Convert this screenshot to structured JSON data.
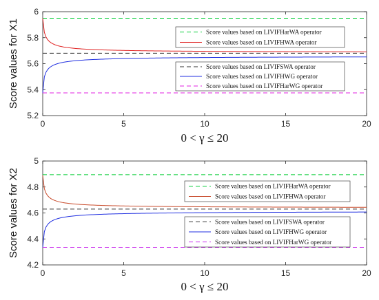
{
  "chart_data": [
    {
      "type": "line",
      "ylabel": "Score values for X1",
      "xlabel": "0 < γ ≤ 20",
      "xlim": [
        0,
        20
      ],
      "ylim": [
        5.2,
        6.0
      ],
      "xticks": [
        "0",
        "5",
        "10",
        "15",
        "20"
      ],
      "yticks": [
        "5.2",
        "5.4",
        "5.6",
        "5.8",
        "6"
      ],
      "grid": false,
      "series": [
        {
          "name": "Score values based on LIVIFHarWA operator",
          "color": "#00cc33",
          "style": "dashed",
          "kind": "constant",
          "value": 5.95
        },
        {
          "name": "Score values based on LIVIFHWA operator",
          "color": "#e02020",
          "style": "solid",
          "kind": "decay",
          "start": 5.95,
          "limit": 5.685,
          "x": [
            0,
            0.5,
            1,
            2,
            5,
            10,
            15,
            20
          ],
          "values": [
            5.95,
            5.79,
            5.75,
            5.72,
            5.7,
            5.695,
            5.69,
            5.688
          ]
        },
        {
          "name": "Score values based on LIVIFSWA operator",
          "color": "#333333",
          "style": "dashed",
          "kind": "constant",
          "value": 5.68
        },
        {
          "name": "Score values based on  LIVIFHWG operator",
          "color": "#1f2ee0",
          "style": "solid",
          "kind": "rise",
          "start": 5.375,
          "limit": 5.66,
          "x": [
            0,
            0.5,
            1,
            2,
            5,
            10,
            15,
            20
          ],
          "values": [
            5.375,
            5.46,
            5.5,
            5.54,
            5.59,
            5.625,
            5.64,
            5.65
          ]
        },
        {
          "name": "Score values  based on  LIVIFHarWG operator",
          "color": "#e020e0",
          "style": "dashed",
          "kind": "constant",
          "value": 5.375
        }
      ],
      "legend_groups": [
        [
          0,
          1
        ],
        [
          2,
          3,
          4
        ]
      ]
    },
    {
      "type": "line",
      "ylabel": "Score values for X2",
      "xlabel": "0 < γ ≤ 20",
      "xlim": [
        0,
        20
      ],
      "ylim": [
        4.2,
        5.0
      ],
      "xticks": [
        "0",
        "5",
        "10",
        "15",
        "20"
      ],
      "yticks": [
        "4.2",
        "4.4",
        "4.6",
        "4.8",
        "5"
      ],
      "grid": false,
      "series": [
        {
          "name": "Score values based on LIVIFHarWA operator",
          "color": "#00cc33",
          "style": "dashed",
          "kind": "constant",
          "value": 4.895
        },
        {
          "name": "Score values based on LIVIFHWA operator",
          "color": "#c84a2a",
          "style": "solid",
          "kind": "decay",
          "start": 4.89,
          "limit": 4.638,
          "x": [
            0,
            0.5,
            1,
            2,
            5,
            10,
            15,
            20
          ],
          "values": [
            4.89,
            4.8,
            4.75,
            4.7,
            4.665,
            4.652,
            4.646,
            4.643
          ]
        },
        {
          "name": "Score values based on LIVIFSWA operator",
          "color": "#333333",
          "style": "dashed",
          "kind": "constant",
          "value": 4.63
        },
        {
          "name": "Score values based on  LIVIFHWG operator",
          "color": "#1f2ee0",
          "style": "solid",
          "kind": "rise",
          "start": 4.335,
          "limit": 4.615,
          "x": [
            0,
            0.5,
            1,
            2,
            5,
            10,
            15,
            20
          ],
          "values": [
            4.335,
            4.44,
            4.48,
            4.52,
            4.565,
            4.59,
            4.6,
            4.61
          ]
        },
        {
          "name": "Score values  based on  LIVIFHarWG operator",
          "color": "#cc33ee",
          "style": "dashed",
          "kind": "constant",
          "value": 4.335
        }
      ],
      "legend_groups": [
        [
          0,
          1
        ],
        [
          2,
          3,
          4
        ]
      ]
    }
  ]
}
